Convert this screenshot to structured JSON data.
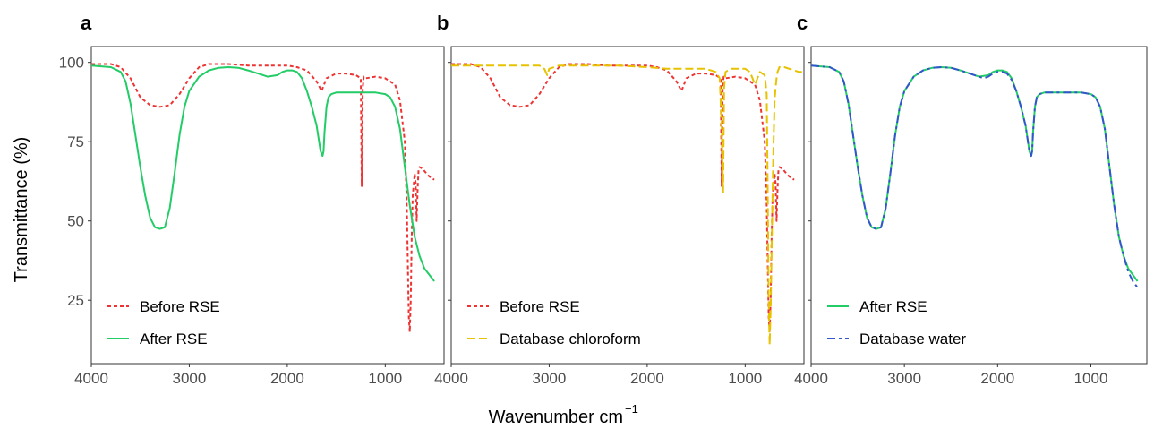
{
  "figure": {
    "ylabel": "Transmittance (%)",
    "xlabel_main": "Wavenumber cm",
    "xlabel_sup": "−1"
  },
  "chart_data": [
    {
      "type": "line",
      "panel": "a",
      "xlim": [
        4000,
        400
      ],
      "ylim": [
        5,
        105
      ],
      "x_ticks": [
        4000,
        3000,
        2000,
        1000
      ],
      "y_ticks": [
        25,
        50,
        75,
        100
      ],
      "grid": false,
      "legend_position": "bottom-left",
      "series": [
        {
          "name": "Before RSE",
          "color": "#ee3333",
          "dash": "dashed",
          "x": [
            4000,
            3800,
            3700,
            3600,
            3500,
            3400,
            3300,
            3200,
            3100,
            3000,
            2900,
            2800,
            2600,
            2400,
            2200,
            2000,
            1900,
            1800,
            1700,
            1650,
            1600,
            1500,
            1400,
            1300,
            1250,
            1240,
            1230,
            1220,
            1200,
            1100,
            1000,
            900,
            850,
            800,
            780,
            760,
            750,
            740,
            730,
            720,
            700,
            690,
            680,
            670,
            660,
            650,
            620,
            580,
            550,
            500
          ],
          "y": [
            99.5,
            99.5,
            98.5,
            95,
            89,
            86.5,
            86,
            86.5,
            90,
            95,
            98.5,
            99.5,
            99.5,
            99,
            99,
            99,
            98.5,
            97.5,
            94,
            91,
            95,
            96.5,
            96.5,
            96,
            95,
            61,
            92,
            95.5,
            95,
            95.5,
            95,
            93,
            88,
            75,
            55,
            20,
            15,
            25,
            45,
            58,
            65,
            62,
            50,
            60,
            66,
            67,
            66.5,
            65,
            64,
            63
          ]
        },
        {
          "name": "After RSE",
          "color": "#22cc66",
          "dash": "solid",
          "x": [
            4000,
            3800,
            3700,
            3650,
            3600,
            3550,
            3500,
            3450,
            3400,
            3350,
            3300,
            3250,
            3200,
            3150,
            3100,
            3050,
            3000,
            2900,
            2800,
            2700,
            2600,
            2500,
            2400,
            2300,
            2200,
            2100,
            2050,
            2000,
            1950,
            1900,
            1850,
            1800,
            1750,
            1700,
            1680,
            1660,
            1640,
            1630,
            1620,
            1600,
            1580,
            1550,
            1500,
            1400,
            1300,
            1200,
            1100,
            1000,
            950,
            900,
            850,
            800,
            750,
            700,
            650,
            600,
            550,
            500
          ],
          "y": [
            99,
            98.5,
            97,
            94,
            87,
            77,
            67,
            58,
            51,
            48,
            47.5,
            48,
            54,
            65,
            77,
            86,
            91,
            95.5,
            97.5,
            98.3,
            98.5,
            98.3,
            97.5,
            96.5,
            95.5,
            96,
            97,
            97.5,
            97.5,
            97,
            95,
            91,
            86,
            80,
            76,
            72,
            70.5,
            72,
            78,
            86,
            89,
            90,
            90.5,
            90.5,
            90.5,
            90.5,
            90.5,
            90,
            89,
            86,
            79,
            67,
            55,
            45,
            39,
            35,
            33,
            31
          ]
        }
      ]
    },
    {
      "type": "line",
      "panel": "b",
      "xlim": [
        4000,
        400
      ],
      "ylim": [
        5,
        105
      ],
      "x_ticks": [
        4000,
        3000,
        2000,
        1000
      ],
      "y_ticks": [
        25,
        50,
        75,
        100
      ],
      "grid": false,
      "legend_position": "bottom-left",
      "series": [
        {
          "name": "Before RSE",
          "color": "#ee3333",
          "dash": "dashed",
          "x": [
            4000,
            3800,
            3700,
            3600,
            3500,
            3400,
            3300,
            3200,
            3100,
            3000,
            2900,
            2800,
            2600,
            2400,
            2200,
            2000,
            1900,
            1800,
            1700,
            1650,
            1600,
            1500,
            1400,
            1300,
            1250,
            1240,
            1230,
            1220,
            1200,
            1100,
            1000,
            900,
            850,
            800,
            780,
            760,
            750,
            740,
            730,
            720,
            700,
            690,
            680,
            670,
            660,
            650,
            620,
            580,
            550,
            500
          ],
          "y": [
            99.5,
            99.5,
            98.5,
            95,
            89,
            86.5,
            86,
            86.5,
            90,
            95,
            98.5,
            99.5,
            99.5,
            99,
            99,
            99,
            98.5,
            97.5,
            94,
            91,
            95,
            96.5,
            96.5,
            96,
            95,
            61,
            92,
            95.5,
            95,
            95.5,
            95,
            93,
            88,
            75,
            55,
            20,
            15,
            25,
            45,
            58,
            65,
            62,
            50,
            60,
            66,
            67,
            66.5,
            65,
            64,
            63
          ]
        },
        {
          "name": "Database chloroform",
          "color": "#e6c200",
          "dash": "longdash",
          "x": [
            4000,
            3500,
            3100,
            3050,
            3020,
            3000,
            2900,
            2700,
            2500,
            2300,
            2000,
            1800,
            1600,
            1500,
            1400,
            1300,
            1260,
            1240,
            1225,
            1215,
            1200,
            1150,
            1100,
            1000,
            950,
            900,
            850,
            800,
            780,
            770,
            760,
            750,
            740,
            730,
            720,
            710,
            700,
            690,
            680,
            670,
            650,
            600,
            550,
            500,
            450,
            420
          ],
          "y": [
            99,
            99,
            99,
            98,
            96,
            98,
            99,
            99,
            99,
            99,
            98.5,
            98,
            98,
            98,
            98,
            97,
            95,
            80,
            59,
            92,
            97,
            98,
            98,
            98,
            97,
            93,
            97,
            96,
            90,
            60,
            25,
            11,
            22,
            40,
            60,
            75,
            88,
            92,
            95,
            97,
            98.5,
            98.5,
            98,
            97.5,
            97,
            97
          ]
        }
      ]
    },
    {
      "type": "line",
      "panel": "c",
      "xlim": [
        4000,
        400
      ],
      "ylim": [
        5,
        105
      ],
      "x_ticks": [
        4000,
        3000,
        2000,
        1000
      ],
      "y_ticks": [
        25,
        50,
        75,
        100
      ],
      "grid": false,
      "legend_position": "bottom-left",
      "series": [
        {
          "name": "After RSE",
          "color": "#22cc66",
          "dash": "solid",
          "x": [
            4000,
            3800,
            3700,
            3650,
            3600,
            3550,
            3500,
            3450,
            3400,
            3350,
            3300,
            3250,
            3200,
            3150,
            3100,
            3050,
            3000,
            2900,
            2800,
            2700,
            2600,
            2500,
            2400,
            2300,
            2200,
            2100,
            2050,
            2000,
            1950,
            1900,
            1850,
            1800,
            1750,
            1700,
            1680,
            1660,
            1640,
            1630,
            1620,
            1600,
            1580,
            1550,
            1500,
            1400,
            1300,
            1200,
            1100,
            1000,
            950,
            900,
            850,
            800,
            750,
            700,
            650,
            600,
            550,
            500
          ],
          "y": [
            99,
            98.5,
            97,
            94,
            87,
            77,
            67,
            58,
            51,
            48,
            47.5,
            48,
            54,
            65,
            77,
            86,
            91,
            95.5,
            97.5,
            98.3,
            98.5,
            98.3,
            97.5,
            96.5,
            95.5,
            96,
            97,
            97.5,
            97.5,
            97,
            95,
            91,
            86,
            80,
            76,
            72,
            70.5,
            72,
            78,
            86,
            89,
            90,
            90.5,
            90.5,
            90.5,
            90.5,
            90.5,
            90,
            89,
            86,
            79,
            67,
            55,
            45,
            39,
            35,
            33,
            31
          ]
        },
        {
          "name": "Database water",
          "color": "#3355cc",
          "dash": "twodash",
          "x": [
            4000,
            3800,
            3700,
            3650,
            3600,
            3550,
            3500,
            3450,
            3400,
            3350,
            3300,
            3250,
            3200,
            3150,
            3100,
            3050,
            3000,
            2900,
            2800,
            2700,
            2600,
            2500,
            2400,
            2300,
            2200,
            2150,
            2100,
            2050,
            2000,
            1950,
            1900,
            1850,
            1800,
            1750,
            1700,
            1680,
            1660,
            1640,
            1630,
            1620,
            1600,
            1580,
            1550,
            1500,
            1400,
            1300,
            1200,
            1100,
            1000,
            950,
            900,
            850,
            800,
            750,
            700,
            650,
            600,
            550,
            500
          ],
          "y": [
            99,
            98.5,
            97,
            94,
            87,
            77,
            67,
            58,
            51,
            48,
            47.5,
            48,
            54,
            65,
            77,
            86,
            91,
            95.5,
            97.5,
            98.3,
            98.5,
            98.3,
            97.5,
            96.5,
            95.5,
            95,
            95.5,
            96.5,
            97,
            97,
            96.5,
            94.5,
            91,
            86,
            80,
            76,
            72,
            70.5,
            72,
            78,
            86,
            89,
            90,
            90.5,
            90.5,
            90.5,
            90.5,
            90.5,
            90,
            89,
            86,
            79,
            67,
            55,
            45,
            39,
            34,
            31,
            29
          ]
        }
      ]
    }
  ]
}
